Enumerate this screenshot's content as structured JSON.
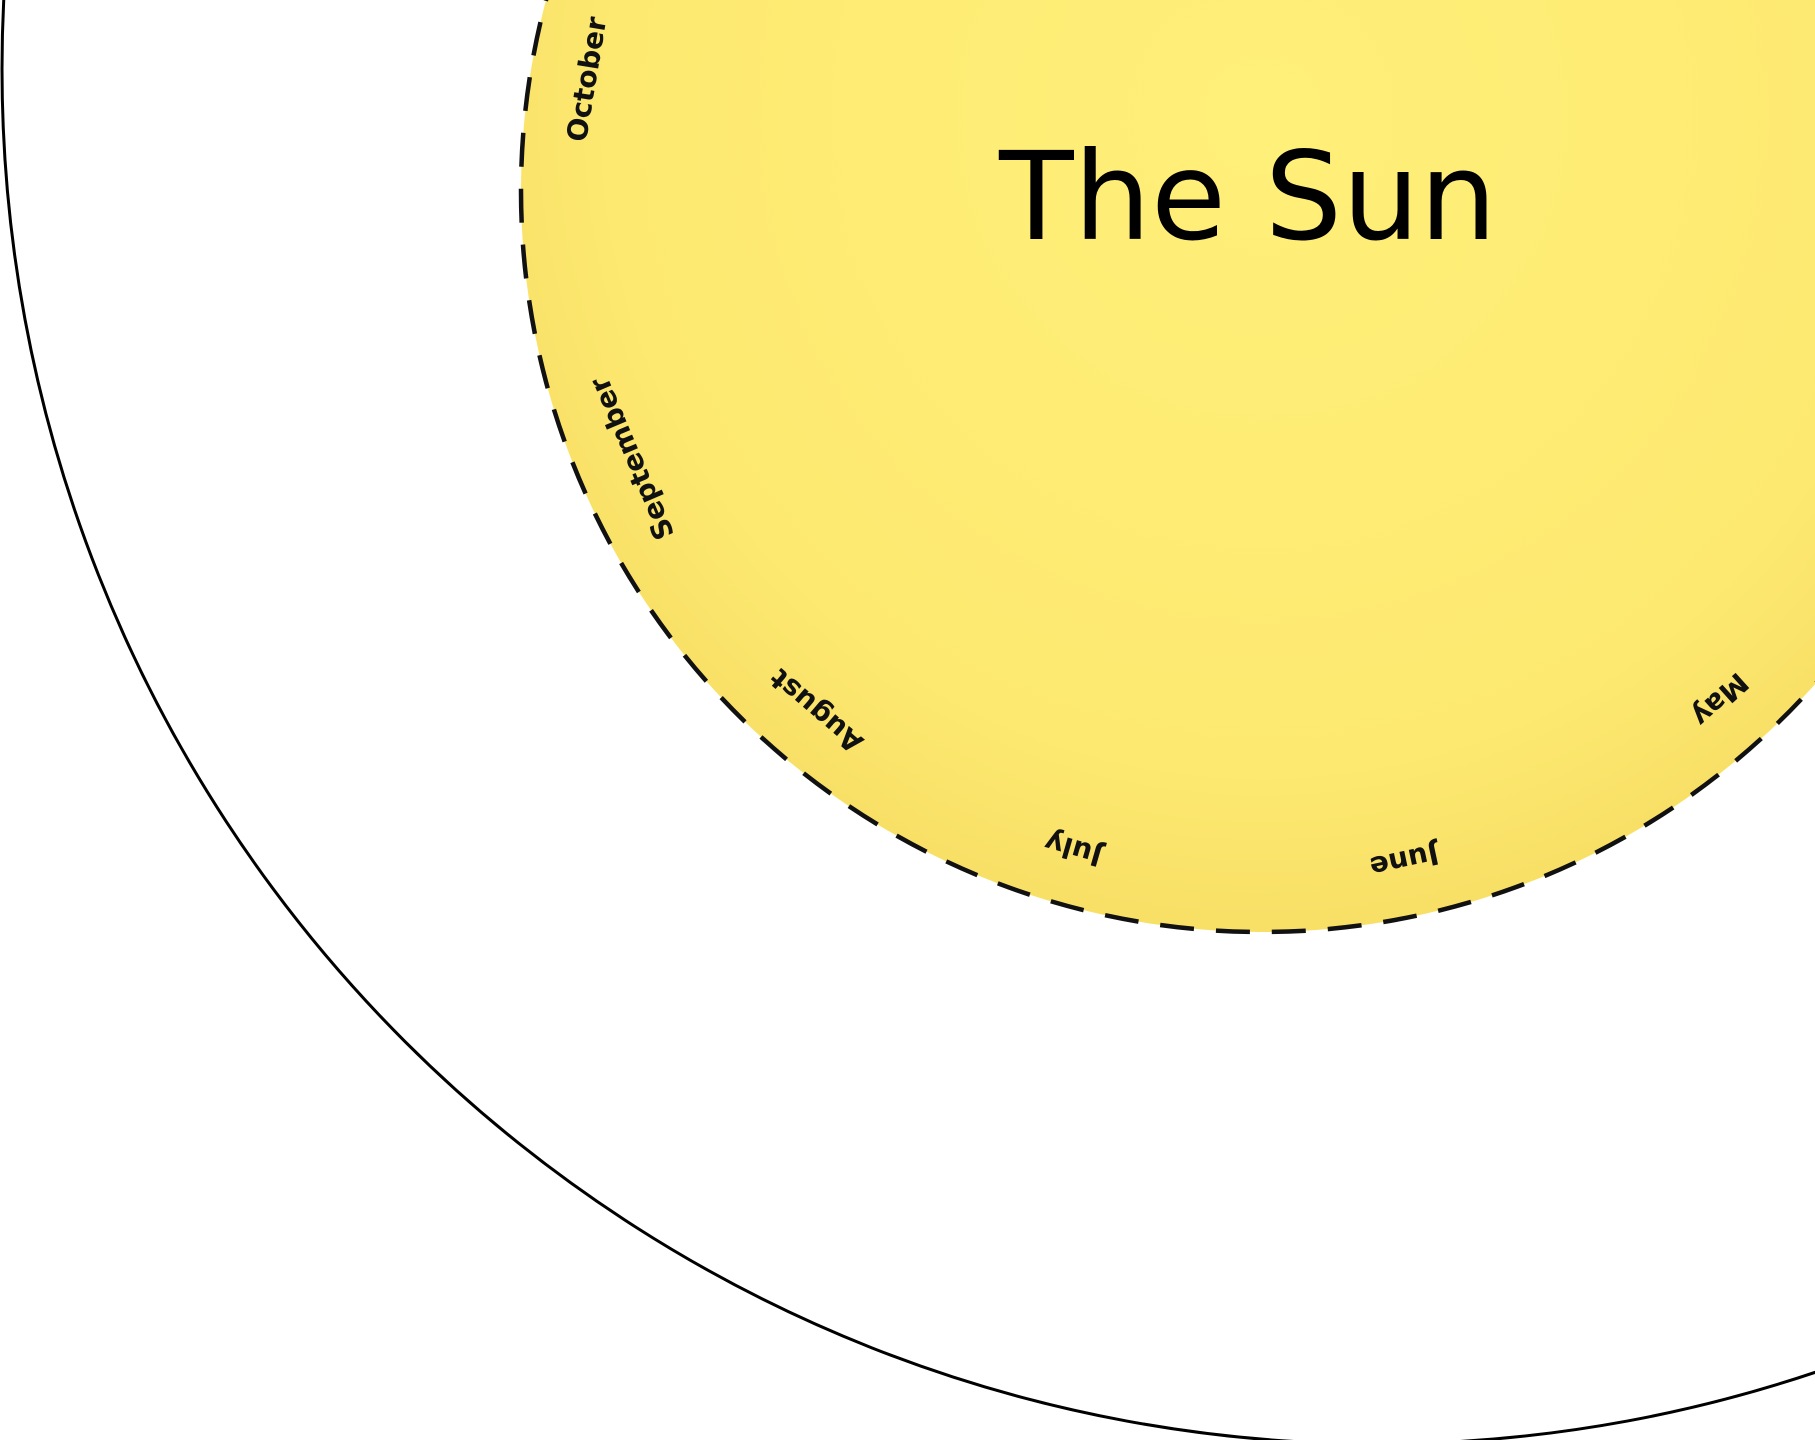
{
  "title": "The Sun",
  "months": [
    "October",
    "September",
    "August",
    "July",
    "June",
    "May"
  ]
}
